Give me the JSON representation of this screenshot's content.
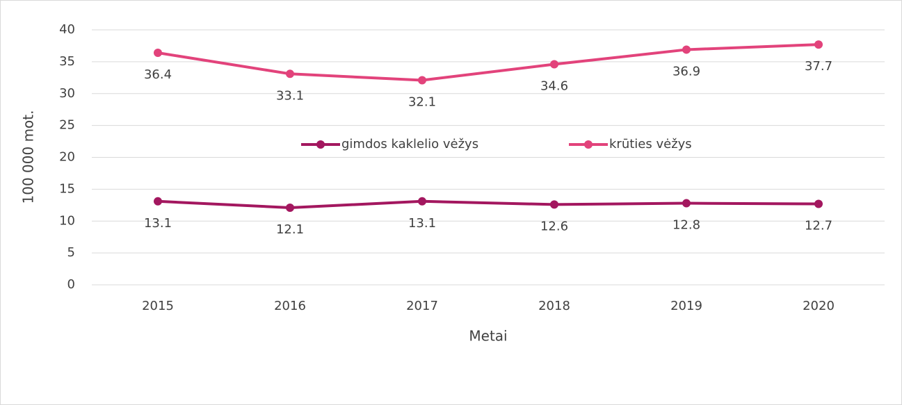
{
  "chart_data": {
    "type": "line",
    "x_label": "Metai",
    "y_label": "100 000 mot.",
    "categories": [
      "2015",
      "2016",
      "2017",
      "2018",
      "2019",
      "2020"
    ],
    "series": [
      {
        "name": "gimdos kaklelio vėžys",
        "color": "#a3175f",
        "values": [
          13.1,
          12.1,
          13.1,
          12.6,
          12.8,
          12.7
        ]
      },
      {
        "name": "krūties vėžys",
        "color": "#e2437b",
        "values": [
          36.4,
          33.1,
          32.1,
          34.6,
          36.9,
          37.7
        ]
      }
    ],
    "ylim": [
      0,
      40
    ],
    "yticks": [
      0,
      5,
      10,
      15,
      20,
      25,
      30,
      35,
      40
    ],
    "grid": true,
    "legend": "center"
  }
}
